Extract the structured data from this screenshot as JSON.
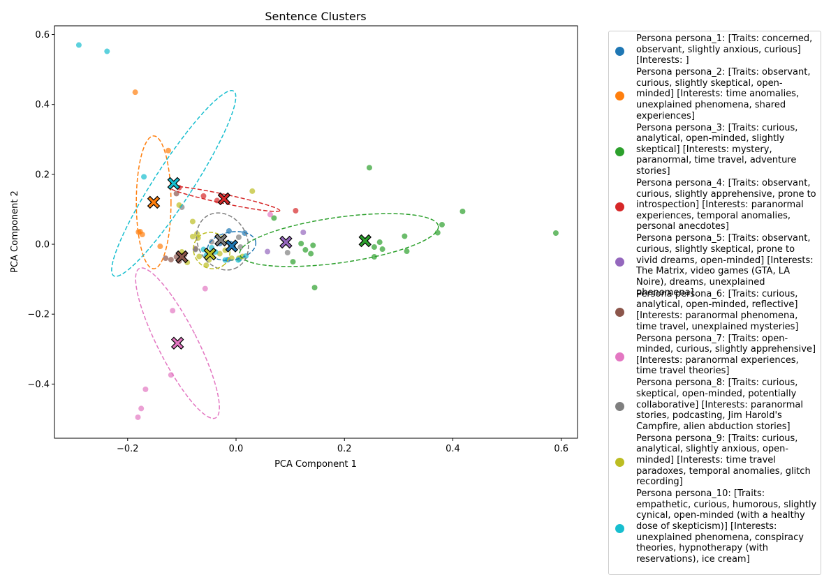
{
  "chart_data": {
    "type": "scatter",
    "title": "Sentence Clusters",
    "xlabel": "PCA Component 1",
    "ylabel": "PCA Component 2",
    "xlim": [
      -0.335,
      0.63
    ],
    "ylim": [
      -0.555,
      0.625
    ],
    "xticks": [
      -0.2,
      0.0,
      0.2,
      0.4,
      0.6
    ],
    "xtick_labels": [
      "−0.2",
      "0.0",
      "0.2",
      "0.4",
      "0.6"
    ],
    "yticks": [
      -0.4,
      -0.2,
      0.0,
      0.2,
      0.4,
      0.6
    ],
    "ytick_labels": [
      "−0.4",
      "−0.2",
      "0.0",
      "0.2",
      "0.4",
      "0.6"
    ],
    "grid": false,
    "legend_position": "outside-right",
    "series": [
      {
        "name": "Persona persona_1: [Traits: concerned, observant, slightly anxious, curious] [Interests: ]",
        "color": "#1f77b4",
        "points": [
          [
            -0.013,
            0.038
          ],
          [
            0.016,
            0.032
          ],
          [
            -0.01,
            0.002
          ],
          [
            -0.005,
            -0.008
          ],
          [
            -0.015,
            -0.044
          ],
          [
            0.006,
            -0.042
          ],
          [
            -0.03,
            0.002
          ]
        ],
        "centroid": [
          -0.008,
          -0.005
        ],
        "ellipse": {
          "cx": -0.008,
          "cy": -0.005,
          "rx": 0.045,
          "ry": 0.04,
          "angle_deg": 10
        }
      },
      {
        "name": "Persona persona_2: [Traits: observant, curious, slightly skeptical, open-minded] [Interests: time anomalies, unexplained phenomena, shared experiences]",
        "color": "#ff7f0e",
        "points": [
          [
            -0.186,
            0.435
          ],
          [
            -0.177,
            0.036
          ],
          [
            -0.173,
            0.028
          ],
          [
            -0.18,
            0.035
          ],
          [
            -0.14,
            -0.006
          ],
          [
            -0.125,
            0.268
          ]
        ],
        "centroid": [
          -0.152,
          0.12
        ],
        "ellipse": {
          "cx": -0.152,
          "cy": 0.12,
          "rx": 0.032,
          "ry": 0.19,
          "angle_deg": 0
        }
      },
      {
        "name": "Persona persona_3: [Traits: curious, analytical, open-minded, slightly skeptical] [Interests: mystery, paranormal, time travel, adventure stories]",
        "color": "#2ca02c",
        "points": [
          [
            0.246,
            0.219
          ],
          [
            0.418,
            0.094
          ],
          [
            0.59,
            0.032
          ],
          [
            0.38,
            0.056
          ],
          [
            0.372,
            0.033
          ],
          [
            0.311,
            0.023
          ],
          [
            0.265,
            0.006
          ],
          [
            0.255,
            -0.008
          ],
          [
            0.27,
            -0.014
          ],
          [
            0.315,
            -0.02
          ],
          [
            0.255,
            -0.036
          ],
          [
            0.142,
            -0.003
          ],
          [
            0.12,
            0.002
          ],
          [
            0.128,
            -0.016
          ],
          [
            0.138,
            -0.027
          ],
          [
            0.105,
            -0.05
          ],
          [
            0.145,
            -0.124
          ],
          [
            0.07,
            0.075
          ]
        ],
        "centroid": [
          0.238,
          0.01
        ],
        "ellipse": {
          "cx": 0.19,
          "cy": 0.012,
          "rx": 0.185,
          "ry": 0.065,
          "angle_deg": 8
        }
      },
      {
        "name": "Persona persona_4: [Traits: observant, curious, slightly apprehensive, prone to introspection] [Interests: paranormal experiences, temporal anomalies, personal anecdotes]",
        "color": "#d62728",
        "points": [
          [
            -0.06,
            0.138
          ],
          [
            -0.105,
            0.162
          ],
          [
            -0.035,
            0.125
          ],
          [
            0.11,
            0.096
          ]
        ],
        "centroid": [
          -0.022,
          0.13
        ],
        "ellipse": {
          "cx": -0.022,
          "cy": 0.13,
          "rx": 0.105,
          "ry": 0.013,
          "angle_deg": -12
        }
      },
      {
        "name": "Persona persona_5: [Traits: observant, curious, slightly skeptical, prone to vivid dreams, open-minded] [Interests: The Matrix, video games (GTA, LA Noire), dreams, unexplained phenomena]",
        "color": "#9467bd",
        "points": [
          [
            0.124,
            0.034
          ],
          [
            0.058,
            -0.021
          ]
        ],
        "centroid": [
          0.092,
          0.006
        ]
      },
      {
        "name": "Persona persona_6: [Traits: curious, analytical, open-minded, reflective] [Interests: paranormal phenomena, time travel, unexplained mysteries]",
        "color": "#8c564b",
        "points": [
          [
            -0.13,
            -0.04
          ],
          [
            -0.12,
            -0.044
          ],
          [
            -0.11,
            -0.036
          ],
          [
            -0.105,
            -0.048
          ],
          [
            -0.095,
            -0.03
          ],
          [
            -0.075,
            -0.013
          ],
          [
            -0.11,
            0.145
          ]
        ],
        "centroid": [
          -0.1,
          -0.036
        ]
      },
      {
        "name": "Persona persona_7: [Traits: open-minded, curious, slightly apprehensive] [Interests: paranormal experiences, time travel theories]",
        "color": "#e377c2",
        "points": [
          [
            -0.117,
            -0.19
          ],
          [
            -0.057,
            -0.127
          ],
          [
            -0.12,
            -0.374
          ],
          [
            -0.167,
            -0.415
          ],
          [
            -0.175,
            -0.47
          ],
          [
            -0.181,
            -0.495
          ],
          [
            0.063,
            0.085
          ]
        ],
        "centroid": [
          -0.108,
          -0.283
        ],
        "ellipse": {
          "cx": -0.108,
          "cy": -0.283,
          "rx": 0.036,
          "ry": 0.24,
          "angle_deg": 27
        }
      },
      {
        "name": "Persona persona_8: [Traits: curious, skeptical, open-minded, potentially collaborative] [Interests: paranormal stories, podcasting, Jim Harold's Campfire, alien abduction stories]",
        "color": "#7f7f7f",
        "points": [
          [
            -0.1,
            0.106
          ],
          [
            0.005,
            0.02
          ],
          [
            0.008,
            -0.008
          ],
          [
            0.095,
            -0.024
          ],
          [
            -0.045,
            0.007
          ],
          [
            -0.075,
            -0.015
          ]
        ],
        "centroid": [
          -0.028,
          0.012
        ],
        "ellipse": {
          "cx": -0.025,
          "cy": 0.008,
          "rx": 0.055,
          "ry": 0.07,
          "angle_deg": -60
        }
      },
      {
        "name": "Persona persona_9: [Traits: curious, analytical, slightly anxious, open-minded] [Interests: time travel paradoxes, temporal anomalies, glitch recording]",
        "color": "#bcbd22",
        "points": [
          [
            0.03,
            0.152
          ],
          [
            -0.08,
            0.065
          ],
          [
            -0.105,
            0.112
          ],
          [
            -0.072,
            0.03
          ],
          [
            -0.07,
            0.018
          ],
          [
            -0.08,
            0.022
          ],
          [
            -0.1,
            -0.022
          ],
          [
            -0.098,
            -0.03
          ],
          [
            -0.09,
            -0.052
          ],
          [
            -0.068,
            -0.035
          ],
          [
            -0.055,
            -0.06
          ],
          [
            -0.05,
            -0.045
          ],
          [
            -0.045,
            -0.025
          ],
          [
            -0.03,
            -0.027
          ],
          [
            -0.02,
            -0.017
          ],
          [
            0.005,
            -0.04
          ],
          [
            -0.008,
            -0.04
          ],
          [
            0.012,
            -0.035
          ]
        ],
        "centroid": [
          -0.048,
          -0.028
        ],
        "ellipse": {
          "cx": -0.045,
          "cy": -0.018,
          "rx": 0.035,
          "ry": 0.05,
          "angle_deg": -45
        }
      },
      {
        "name": "Persona persona_10: [Traits: empathetic, curious, humorous, slightly cynical, open-minded (with a healthy dose of skepticism)] [Interests: unexplained phenomena, conspiracy theories, hypnotherapy (with reservations), ice cream]",
        "color": "#17becf",
        "points": [
          [
            -0.29,
            0.57
          ],
          [
            -0.238,
            0.552
          ],
          [
            -0.17,
            0.193
          ],
          [
            -0.06,
            -0.015
          ],
          [
            -0.055,
            -0.032
          ],
          [
            -0.045,
            -0.01
          ],
          [
            -0.038,
            -0.022
          ],
          [
            -0.02,
            -0.045
          ],
          [
            0.018,
            -0.034
          ],
          [
            0.004,
            -0.045
          ]
        ],
        "centroid": [
          -0.115,
          0.174
        ],
        "ellipse": {
          "cx": -0.115,
          "cy": 0.174,
          "rx": 0.035,
          "ry": 0.315,
          "angle_deg": -33
        }
      }
    ]
  }
}
